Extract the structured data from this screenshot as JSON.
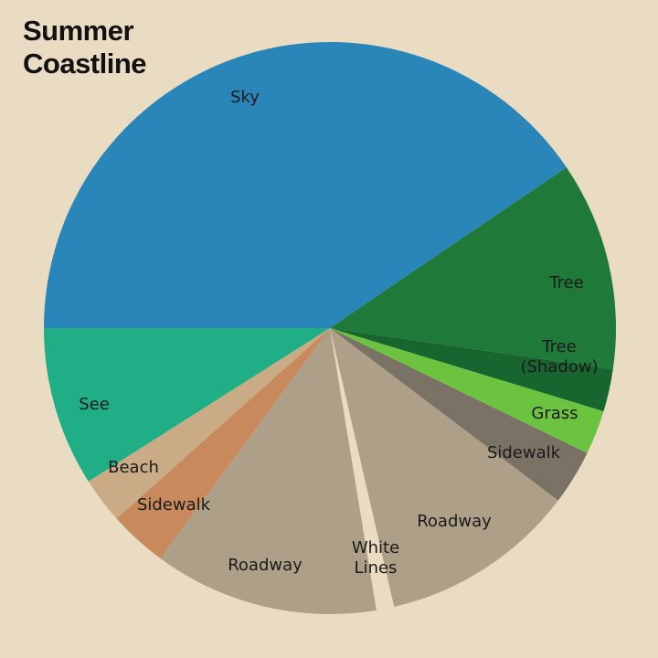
{
  "chart_data": {
    "type": "pie",
    "title": "Summer\nCoastline",
    "start_angle_deg": 180,
    "direction": "clockwise",
    "slices": [
      {
        "label": "Sky",
        "value": 40.5,
        "color": "#2a86b8"
      },
      {
        "label": "Tree",
        "value": 11.8,
        "color": "#1f7a3a"
      },
      {
        "label": "Tree\n(Shadow)",
        "value": 2.4,
        "color": "#176630"
      },
      {
        "label": "Grass",
        "value": 2.5,
        "color": "#6cc33f"
      },
      {
        "label": "Sidewalk",
        "value": 3.1,
        "color": "#7a7265"
      },
      {
        "label": "Roadway",
        "value": 11.1,
        "color": "#ad9f88"
      },
      {
        "label": "White\nLines",
        "value": 1.0,
        "color": "#e9dcc3"
      },
      {
        "label": "Roadway",
        "value": 12.7,
        "color": "#ad9f88"
      },
      {
        "label": "Sidewalk",
        "value": 3.3,
        "color": "#c88a5c"
      },
      {
        "label": "Beach",
        "value": 2.6,
        "color": "#c9ab86"
      },
      {
        "label": "See",
        "value": 9.0,
        "color": "#1fae85"
      }
    ],
    "background_color": "#e9dcc3"
  }
}
